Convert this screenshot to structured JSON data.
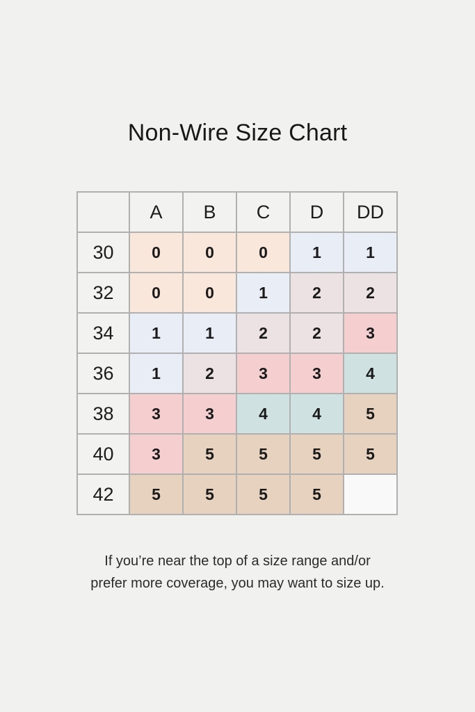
{
  "title": "Non-Wire Size Chart",
  "footer": {
    "line1": "If you’re near the top of a size range and/or",
    "line2": "prefer more coverage, you may want to size up."
  },
  "colors": {
    "page_bg": "#f1f1f0",
    "header_bg": "#f2f2f1",
    "border": "#b0b0b0",
    "value_fills": {
      "0": "#f8e7da",
      "1": "#e9eef6",
      "2": "#ece1e3",
      "3": "#f5cfd0",
      "4": "#d0e1e2",
      "5": "#e6d2bf",
      "empty": "#f9f9f9"
    }
  },
  "chart_data": {
    "type": "table",
    "title": "Non-Wire Size Chart",
    "columns": [
      "A",
      "B",
      "C",
      "D",
      "DD"
    ],
    "row_header_label": "",
    "rows": [
      {
        "band": "30",
        "values": [
          "0",
          "0",
          "0",
          "1",
          "1"
        ]
      },
      {
        "band": "32",
        "values": [
          "0",
          "0",
          "1",
          "2",
          "2"
        ]
      },
      {
        "band": "34",
        "values": [
          "1",
          "1",
          "2",
          "2",
          "3"
        ]
      },
      {
        "band": "36",
        "values": [
          "1",
          "2",
          "3",
          "3",
          "4"
        ]
      },
      {
        "band": "38",
        "values": [
          "3",
          "3",
          "4",
          "4",
          "5"
        ]
      },
      {
        "band": "40",
        "values": [
          "3",
          "5",
          "5",
          "5",
          "5"
        ]
      },
      {
        "band": "42",
        "values": [
          "5",
          "5",
          "5",
          "5",
          ""
        ]
      }
    ]
  }
}
